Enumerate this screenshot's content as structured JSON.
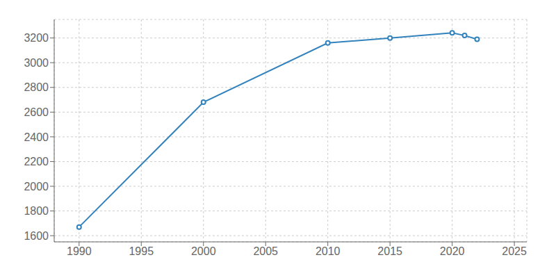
{
  "chart_data": {
    "type": "line",
    "x": [
      1990,
      2000,
      2010,
      2015,
      2020,
      2021,
      2022
    ],
    "values": [
      1670,
      2680,
      3160,
      3200,
      3242,
      3220,
      3190
    ],
    "xlim": [
      1988,
      2026
    ],
    "ylim": [
      1550,
      3350
    ],
    "xticks": [
      1990,
      1995,
      2000,
      2005,
      2010,
      2015,
      2020,
      2025
    ],
    "yticks": [
      1600,
      1800,
      2000,
      2200,
      2400,
      2600,
      2800,
      3000,
      3200
    ],
    "grid": true,
    "marker": "circle"
  }
}
